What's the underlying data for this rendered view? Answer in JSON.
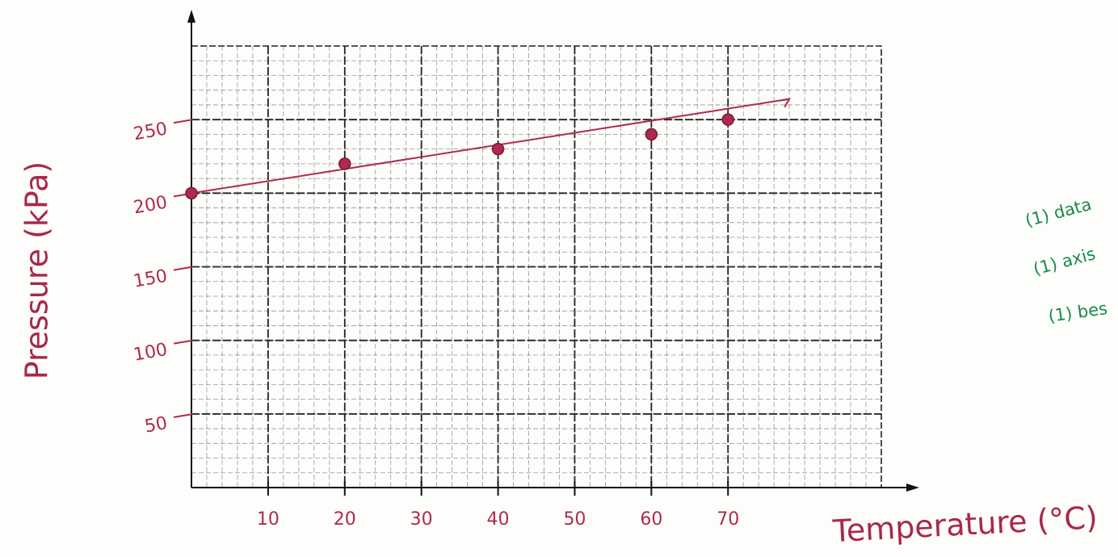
{
  "chart_data": {
    "type": "scatter",
    "x_label": "Temperature (°C)",
    "y_label": "Pressure (kPa)",
    "x": [
      0,
      20,
      40,
      60,
      70
    ],
    "values": [
      200,
      220,
      230,
      240,
      250
    ],
    "color": "#b02a50",
    "fit_line": {
      "x": [
        0,
        78
      ],
      "values": [
        200,
        264
      ]
    },
    "xlim": [
      0,
      90
    ],
    "ylim": [
      0,
      300
    ],
    "xticks": [
      10,
      20,
      30,
      40,
      50,
      60,
      70
    ],
    "yticks": [
      50,
      100,
      150,
      200,
      250
    ],
    "grid": true,
    "annotations": [
      "(1) data",
      "(1) axis",
      "(1) bes"
    ]
  }
}
